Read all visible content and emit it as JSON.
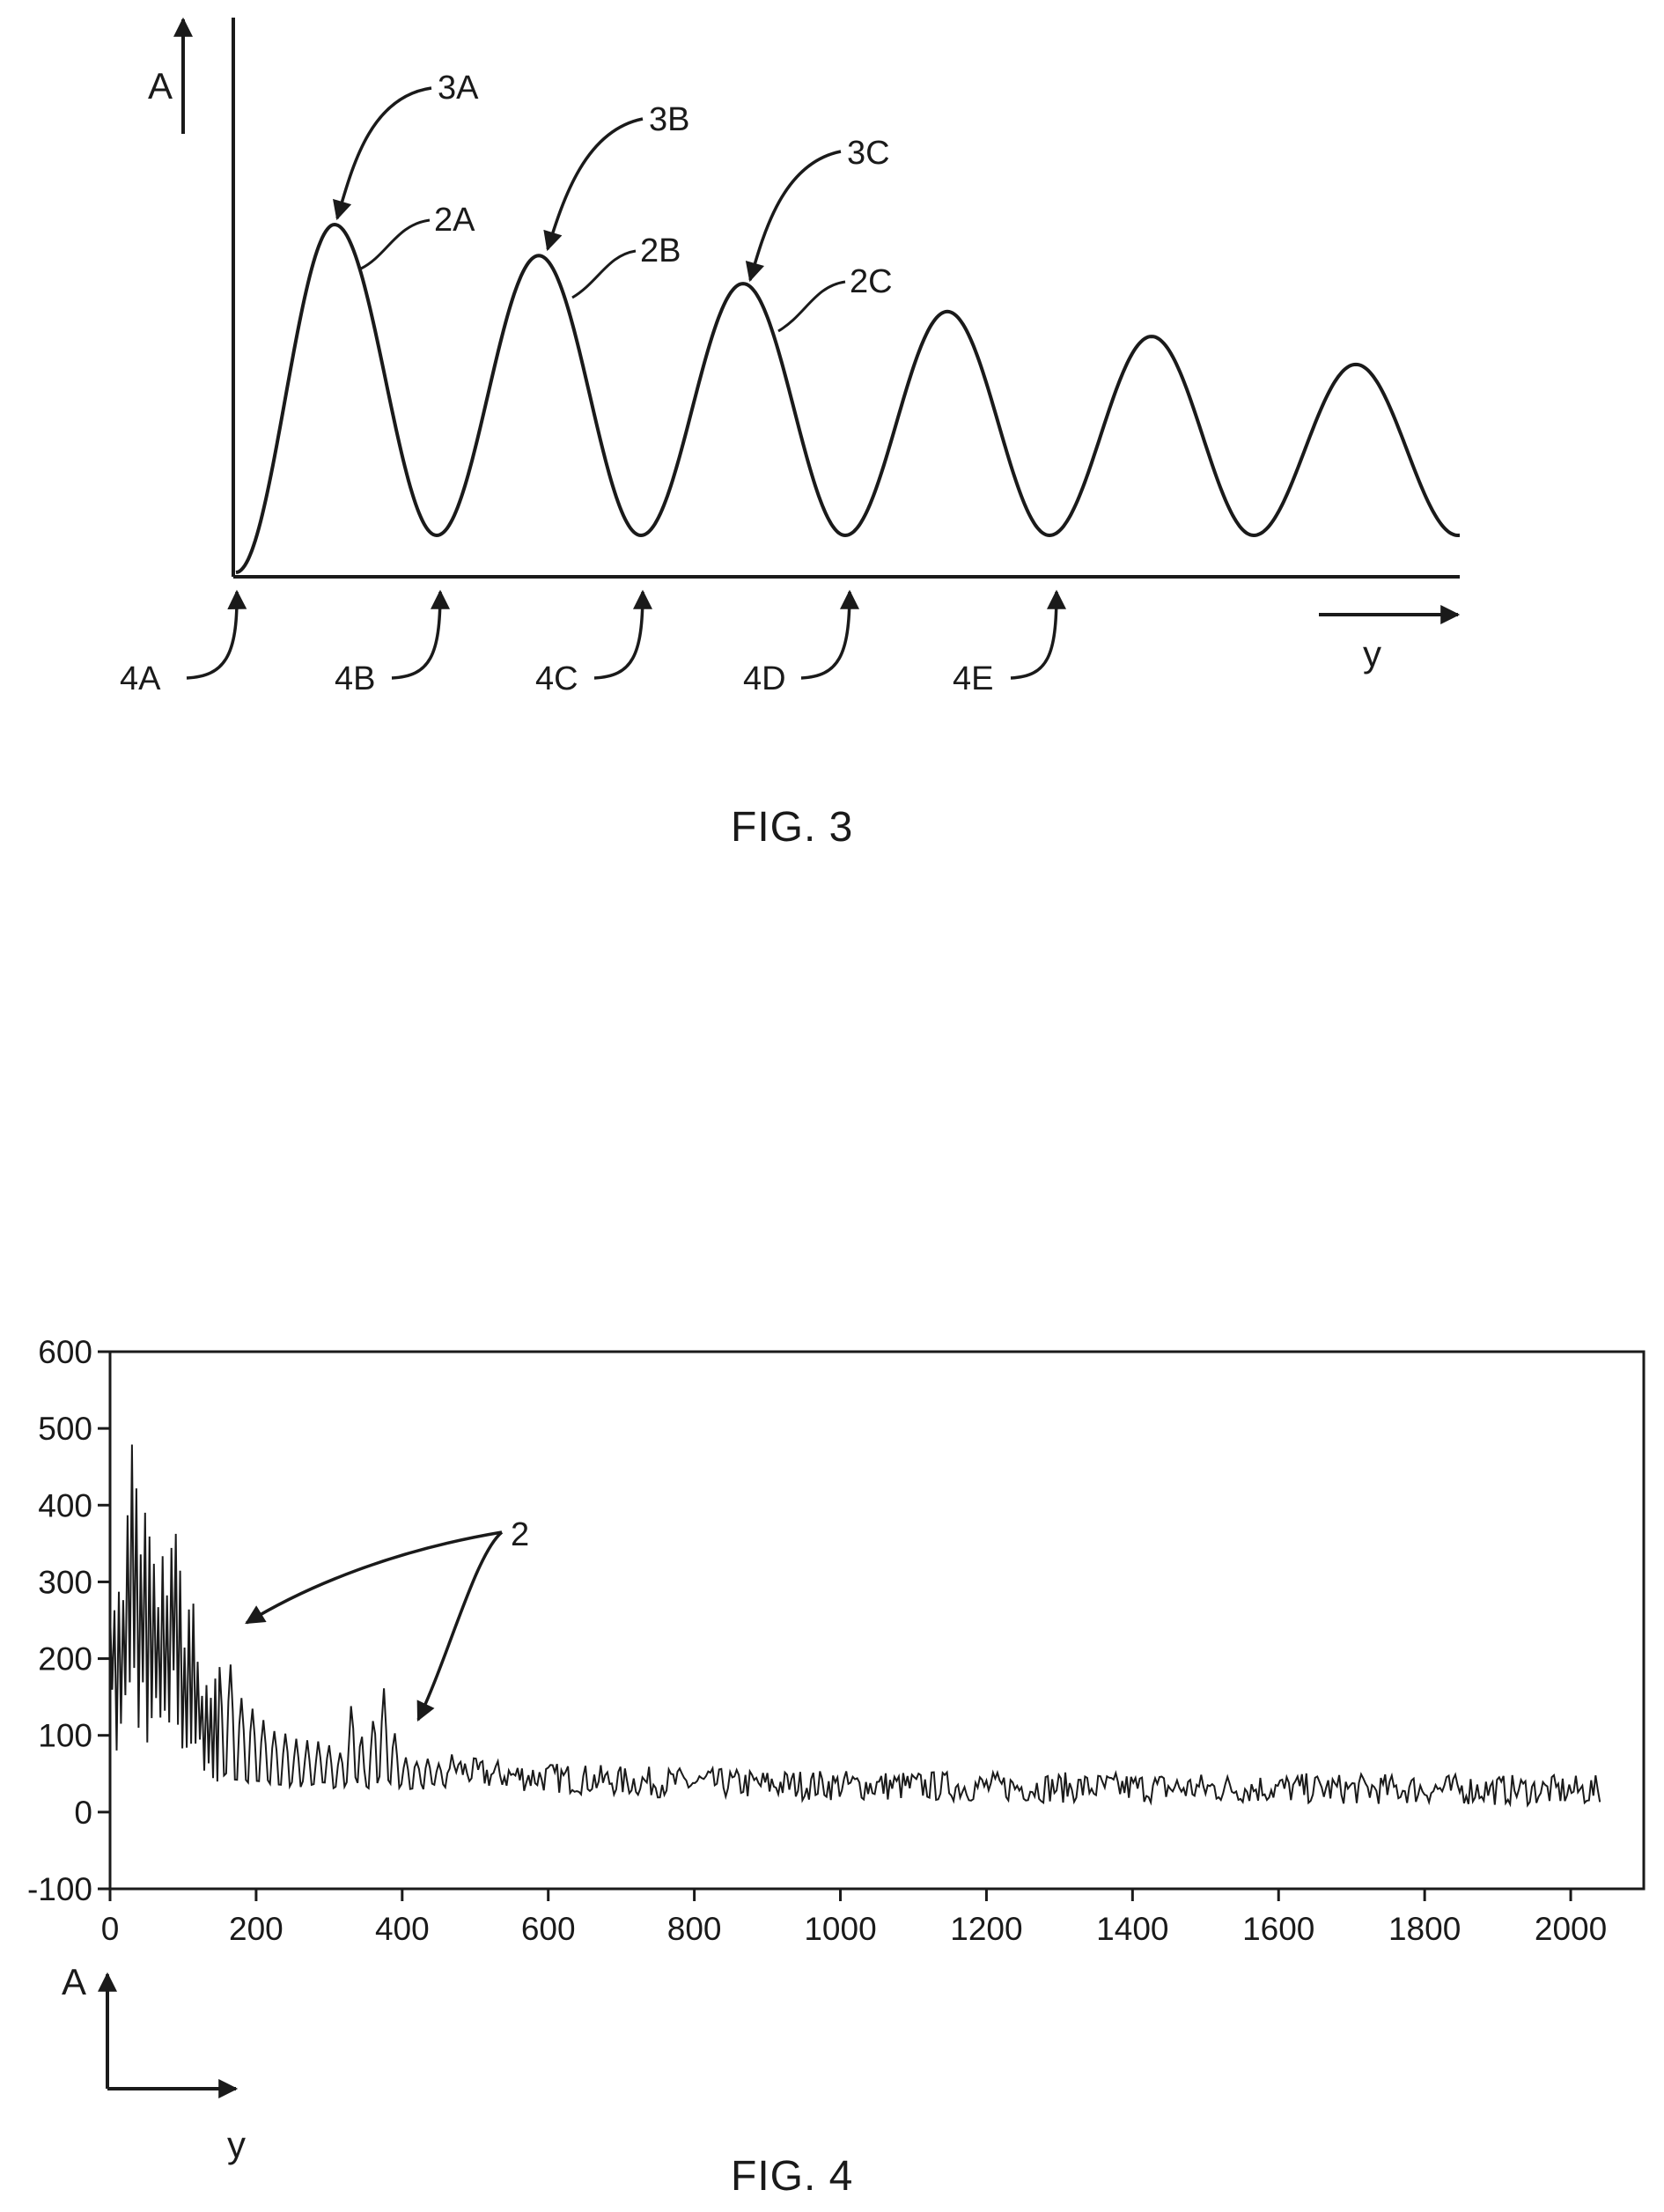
{
  "figures": [
    {
      "caption": "FIG. 3",
      "axis_labels": {
        "vertical": "A",
        "horizontal": "y"
      },
      "peak_labels": [
        "2A",
        "2B",
        "2C"
      ],
      "arrow_labels": [
        "3A",
        "3B",
        "3C"
      ],
      "trough_labels": [
        "4A",
        "4B",
        "4C",
        "4D",
        "4E"
      ]
    },
    {
      "caption": "FIG. 4",
      "axis_labels": {
        "vertical": "A",
        "horizontal": "y"
      },
      "callout": "2"
    }
  ],
  "chart_data": [
    {
      "type": "line",
      "title": "",
      "xlabel": "y",
      "ylabel": "A",
      "grid": false,
      "shape": "damped oscillation",
      "peaks": [
        {
          "label": "2A",
          "arrow": "3A",
          "relative_amplitude": 1.0
        },
        {
          "label": "2B",
          "arrow": "3B",
          "relative_amplitude": 0.9
        },
        {
          "label": "2C",
          "arrow": "3C",
          "relative_amplitude": 0.81
        },
        {
          "label": "",
          "arrow": "",
          "relative_amplitude": 0.72
        },
        {
          "label": "",
          "arrow": "",
          "relative_amplitude": 0.64
        },
        {
          "label": "",
          "arrow": "",
          "relative_amplitude": 0.55
        }
      ],
      "troughs": [
        "4A",
        "4B",
        "4C",
        "4D",
        "4E"
      ]
    },
    {
      "type": "line",
      "title": "",
      "xlabel": "y",
      "ylabel": "A",
      "grid": false,
      "xlim": [
        0,
        2100
      ],
      "ylim": [
        -100,
        600
      ],
      "x_ticks": [
        0,
        200,
        400,
        600,
        800,
        1000,
        1200,
        1400,
        1600,
        1800,
        2000
      ],
      "y_ticks": [
        -100,
        0,
        100,
        200,
        300,
        400,
        500,
        600
      ],
      "x_tick_labels": [
        "0",
        "200",
        "400",
        "600",
        "800",
        "1000",
        "1200",
        "1400",
        "1600",
        "1800",
        "2000"
      ],
      "y_tick_labels": [
        "-100",
        "0",
        "100",
        "200",
        "300",
        "400",
        "500",
        "600"
      ],
      "annotations": [
        {
          "text": "2",
          "points_to": [
            [
              170,
              210
            ],
            [
              420,
              90
            ]
          ]
        }
      ],
      "series": [
        {
          "x": [
            0,
            10,
            20,
            30,
            40,
            50,
            60,
            70,
            80,
            90,
            100,
            110,
            120,
            140,
            160,
            180,
            200,
            220,
            240,
            260,
            280,
            300,
            320,
            335,
            350,
            370,
            400,
            450,
            500,
            600,
            700,
            800,
            900,
            1000,
            1100,
            1200,
            1300,
            1400,
            1500,
            1600,
            1700,
            1800,
            1900,
            2000,
            2040
          ],
          "y": [
            350,
            300,
            340,
            520,
            390,
            430,
            330,
            350,
            300,
            430,
            260,
            320,
            210,
            170,
            210,
            150,
            130,
            110,
            100,
            95,
            90,
            85,
            80,
            165,
            60,
            175,
            70,
            65,
            50,
            45,
            40,
            38,
            36,
            35,
            34,
            33,
            32,
            32,
            31,
            31,
            30,
            30,
            29,
            28,
            28
          ]
        }
      ]
    }
  ]
}
